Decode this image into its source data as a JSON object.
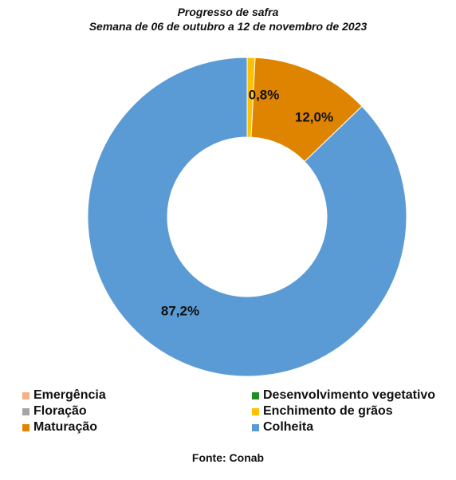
{
  "chart_data": {
    "type": "pie",
    "donut": true,
    "title": "Progresso de safra",
    "subtitle": "Semana de 06 de outubro a 12 de novembro de 2023",
    "series": [
      {
        "name": "Emergência",
        "value": 0.0,
        "label": "",
        "color": "#F4B183"
      },
      {
        "name": "Desenvolvimento vegetativo",
        "value": 0.0,
        "label": "",
        "color": "#228B22"
      },
      {
        "name": "Floração",
        "value": 0.0,
        "label": "",
        "color": "#A5A5A5"
      },
      {
        "name": "Enchimento de grãos",
        "value": 0.8,
        "label": "0,8%",
        "color": "#FFC000"
      },
      {
        "name": "Maturação",
        "value": 12.0,
        "label": "12,0%",
        "color": "#DF8400"
      },
      {
        "name": "Colheita",
        "value": 87.2,
        "label": "87,2%",
        "color": "#5B9BD5"
      }
    ],
    "legend_position": "bottom",
    "source": "Fonte: Conab"
  }
}
